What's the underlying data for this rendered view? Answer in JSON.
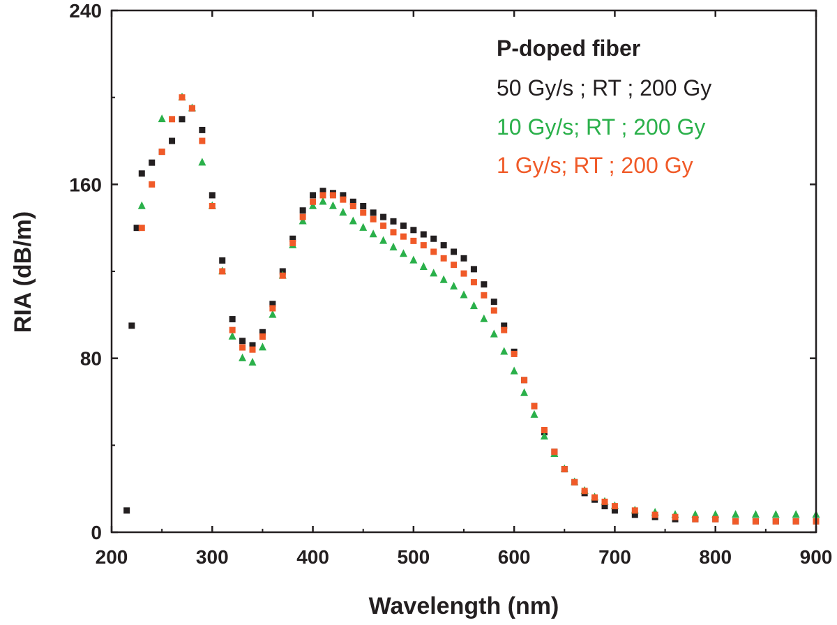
{
  "chart_data": {
    "type": "scatter",
    "title": "",
    "xlabel": "Wavelength (nm)",
    "ylabel": "RIA (dB/m)",
    "xlim": [
      200,
      900
    ],
    "ylim": [
      0,
      240
    ],
    "x_ticks": [
      200,
      300,
      400,
      500,
      600,
      700,
      800,
      900
    ],
    "y_ticks": [
      0,
      80,
      160,
      240
    ],
    "x_tick_labels": [
      "200",
      "300",
      "400",
      "500",
      "600",
      "700",
      "800",
      "900"
    ],
    "y_tick_labels": [
      "0",
      "80",
      "160",
      "240"
    ],
    "legend": {
      "title": "P-doped fiber",
      "position": "top-right",
      "entries": [
        "50 Gy/s ; RT ; 200 Gy",
        "10 Gy/s; RT ; 200 Gy",
        "1 Gy/s; RT ; 200 Gy"
      ]
    },
    "series": [
      {
        "name": "50 Gy/s ; RT ; 200 Gy",
        "marker": "square",
        "color": "#231f20",
        "x": [
          215,
          220,
          225,
          230,
          240,
          250,
          260,
          270,
          280,
          290,
          300,
          310,
          320,
          330,
          340,
          350,
          360,
          370,
          380,
          390,
          400,
          410,
          420,
          430,
          440,
          450,
          460,
          470,
          480,
          490,
          500,
          510,
          520,
          530,
          540,
          550,
          560,
          570,
          580,
          590,
          600,
          610,
          620,
          630,
          640,
          650,
          660,
          670,
          680,
          690,
          700,
          720,
          740,
          760,
          780,
          800,
          820,
          840,
          860,
          880,
          900
        ],
        "y": [
          10,
          95,
          140,
          165,
          170,
          175,
          180,
          190,
          195,
          185,
          155,
          125,
          98,
          88,
          86,
          92,
          105,
          120,
          135,
          148,
          155,
          157,
          156,
          155,
          152,
          150,
          147,
          145,
          143,
          141,
          139,
          137,
          135,
          132,
          129,
          126,
          121,
          114,
          106,
          95,
          83,
          70,
          58,
          46,
          37,
          29,
          23,
          18,
          15,
          12,
          10,
          8,
          7,
          6,
          6,
          6,
          5,
          5,
          5,
          5,
          5
        ]
      },
      {
        "name": "10 Gy/s; RT ; 200 Gy",
        "marker": "triangle",
        "color": "#2ab04a",
        "x": [
          230,
          250,
          270,
          280,
          290,
          300,
          310,
          320,
          330,
          340,
          350,
          360,
          370,
          380,
          390,
          400,
          410,
          420,
          430,
          440,
          450,
          460,
          470,
          480,
          490,
          500,
          510,
          520,
          530,
          540,
          550,
          560,
          570,
          580,
          590,
          600,
          610,
          620,
          630,
          640,
          650,
          660,
          670,
          680,
          690,
          700,
          720,
          740,
          760,
          780,
          800,
          820,
          840,
          860,
          880,
          900
        ],
        "y": [
          150,
          190,
          200,
          195,
          170,
          150,
          120,
          90,
          80,
          78,
          85,
          100,
          118,
          132,
          143,
          150,
          152,
          150,
          147,
          143,
          140,
          137,
          134,
          131,
          128,
          125,
          122,
          119,
          116,
          113,
          109,
          104,
          98,
          91,
          83,
          74,
          64,
          54,
          44,
          36,
          29,
          23,
          19,
          16,
          14,
          12,
          10,
          9,
          8,
          8,
          8,
          8,
          8,
          8,
          8,
          8
        ]
      },
      {
        "name": "1 Gy/s; RT ; 200 Gy",
        "marker": "square",
        "color": "#f05a28",
        "x": [
          230,
          240,
          250,
          260,
          270,
          280,
          290,
          300,
          310,
          320,
          330,
          340,
          350,
          360,
          370,
          380,
          390,
          400,
          410,
          420,
          430,
          440,
          450,
          460,
          470,
          480,
          490,
          500,
          510,
          520,
          530,
          540,
          550,
          560,
          570,
          580,
          590,
          600,
          610,
          620,
          630,
          640,
          650,
          660,
          670,
          680,
          690,
          700,
          720,
          740,
          760,
          780,
          800,
          820,
          840,
          860,
          880,
          900
        ],
        "y": [
          140,
          160,
          175,
          190,
          200,
          195,
          180,
          150,
          120,
          93,
          85,
          84,
          90,
          103,
          118,
          133,
          145,
          152,
          155,
          155,
          153,
          150,
          147,
          144,
          141,
          138,
          136,
          134,
          132,
          129,
          126,
          123,
          119,
          115,
          109,
          102,
          93,
          82,
          70,
          58,
          47,
          37,
          29,
          23,
          19,
          16,
          14,
          12,
          10,
          8,
          7,
          6,
          6,
          5,
          5,
          5,
          5,
          5
        ]
      }
    ]
  }
}
